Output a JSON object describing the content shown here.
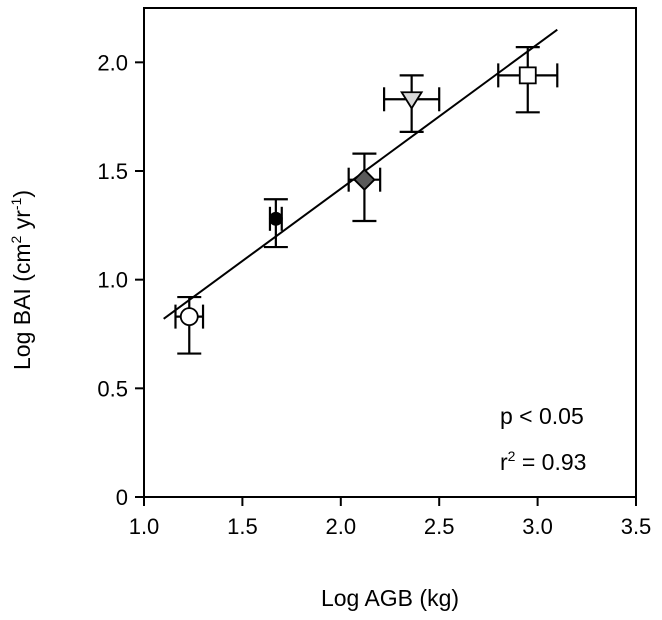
{
  "chart_data": {
    "type": "scatter",
    "title": "",
    "xlabel": "Log AGB (kg)",
    "ylabel": {
      "main": "Log BAI (cm",
      "sup1": "2",
      "mid": " yr",
      "sup2": "-1",
      "end": ")"
    },
    "xlim": [
      1.0,
      3.5
    ],
    "ylim": [
      0,
      2.25
    ],
    "xticks": [
      1.0,
      1.5,
      2.0,
      2.5,
      3.0,
      3.5
    ],
    "xtick_labels": [
      "1.0",
      "1.5",
      "2.0",
      "2.5",
      "3.0",
      "3.5"
    ],
    "yticks": [
      0,
      0.5,
      1.0,
      1.5,
      2.0
    ],
    "ytick_labels": [
      "0",
      "0.5",
      "1.0",
      "1.5",
      "2.0"
    ],
    "grid": false,
    "legend": "none",
    "points": [
      {
        "x": 1.23,
        "y": 0.83,
        "x_err": 0.07,
        "y_err_low": 0.17,
        "y_err_high": 0.09,
        "marker": "circle",
        "fill": "#ffffff"
      },
      {
        "x": 1.67,
        "y": 1.28,
        "x_err": 0.03,
        "y_err_low": 0.13,
        "y_err_high": 0.09,
        "marker": "circle-small",
        "fill": "#000000"
      },
      {
        "x": 2.12,
        "y": 1.46,
        "x_err": 0.08,
        "y_err_low": 0.19,
        "y_err_high": 0.12,
        "marker": "diamond",
        "fill": "#5a5a5a"
      },
      {
        "x": 2.36,
        "y": 1.83,
        "x_err": 0.14,
        "y_err_low": 0.15,
        "y_err_high": 0.11,
        "marker": "triangle-down",
        "fill": "#d8d8d8"
      },
      {
        "x": 2.95,
        "y": 1.94,
        "x_err": 0.15,
        "y_err_low": 0.17,
        "y_err_high": 0.13,
        "marker": "square",
        "fill": "#ffffff"
      }
    ],
    "regression_line": {
      "x": [
        1.1,
        3.1
      ],
      "y": [
        0.82,
        2.15
      ]
    },
    "annotations": {
      "p_text": "p < 0.05",
      "r2_prefix": "r",
      "r2_sup": "2",
      "r2_suffix": " = 0.93"
    }
  }
}
